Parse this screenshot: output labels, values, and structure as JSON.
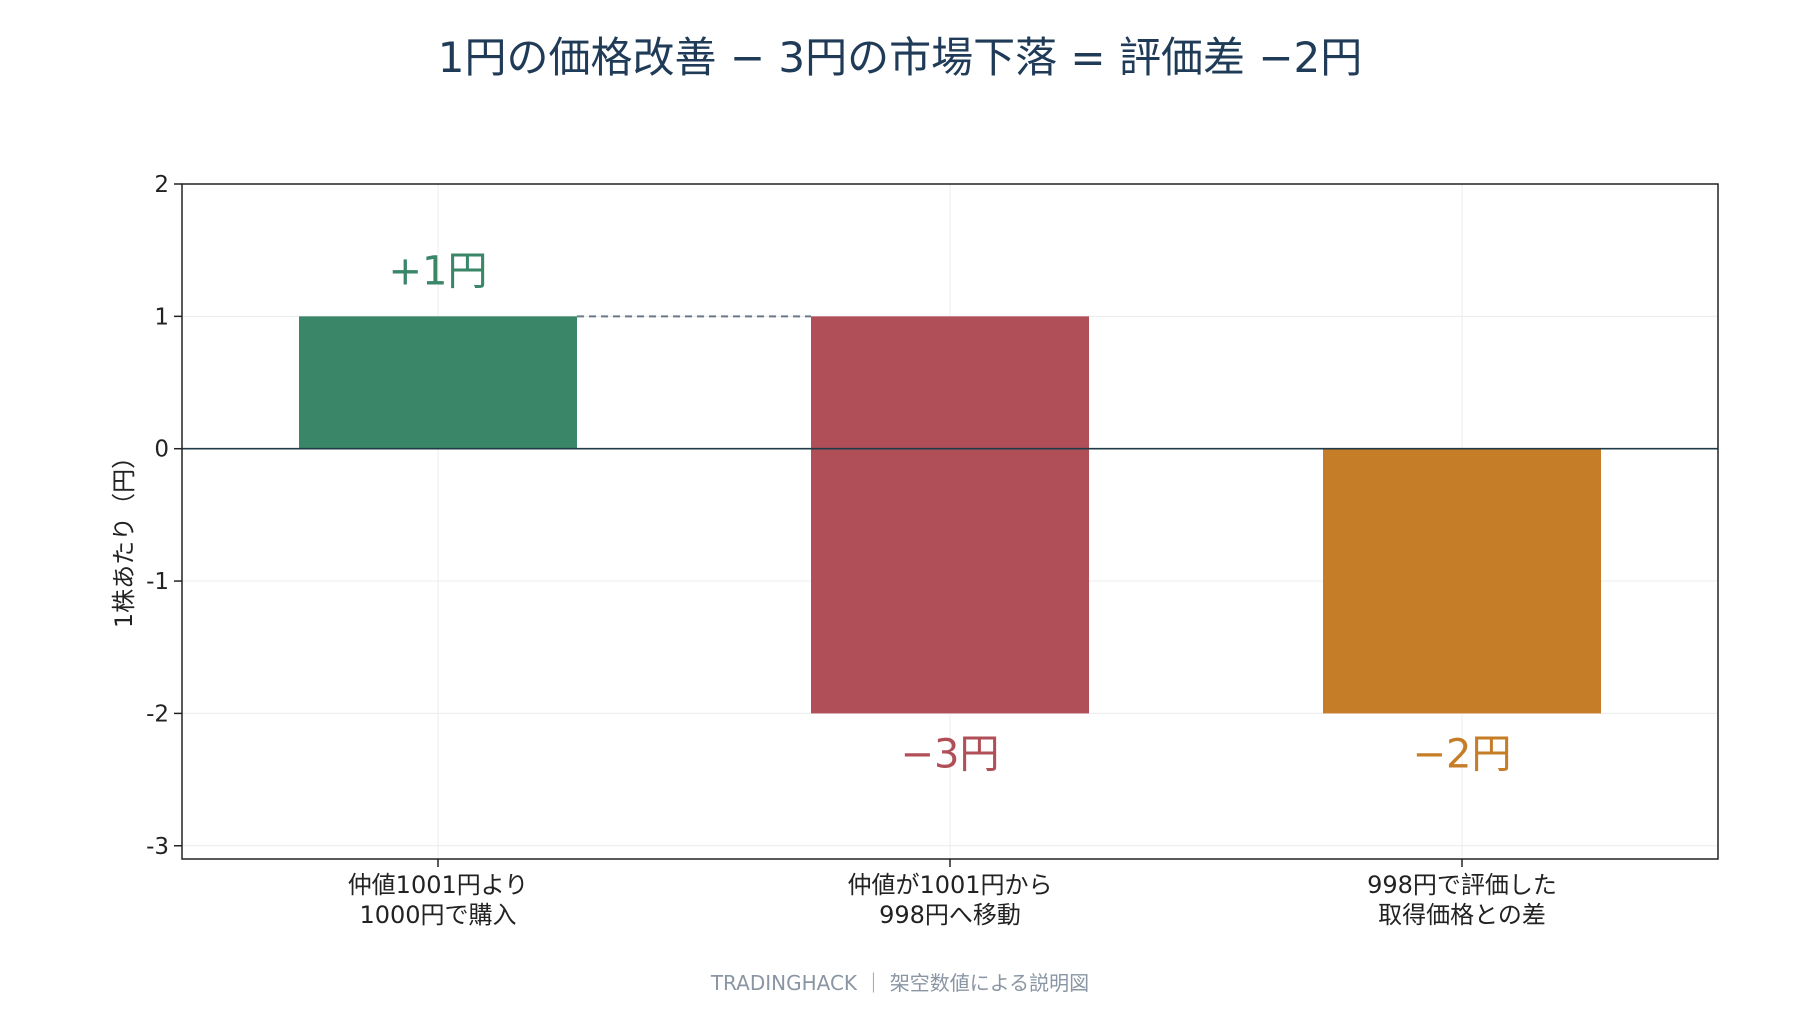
{
  "title": "1円の価格改善 − 3円の市場下落 = 評価差 −2円",
  "footer": "TRADINGHACK ｜ 架空数値による説明図",
  "chart_data": {
    "type": "bar",
    "title": "1円の価格改善 − 3円の市場下落 = 評価差 −2円",
    "ylabel": "1株あたり（円）",
    "xlabel": "",
    "ylim": [
      -3,
      2
    ],
    "yticks": [
      -3,
      -2,
      -1,
      0,
      1,
      2
    ],
    "grid": true,
    "categories": [
      "仲値1001円より\n1000円で購入",
      "仲値が1001円から\n998円へ移動",
      "998円で評価した\n取得価格との差"
    ],
    "bars": [
      {
        "start": 0,
        "end": 1,
        "label": "+1円",
        "color": "#3a8669"
      },
      {
        "start": 1,
        "end": -2,
        "label": "−3円",
        "color": "#b14f58"
      },
      {
        "start": 0,
        "end": -2,
        "label": "−2円",
        "color": "#c57d27"
      }
    ],
    "connector_color": "#6b7a8a",
    "zero_line_color": "#1f3b47"
  }
}
